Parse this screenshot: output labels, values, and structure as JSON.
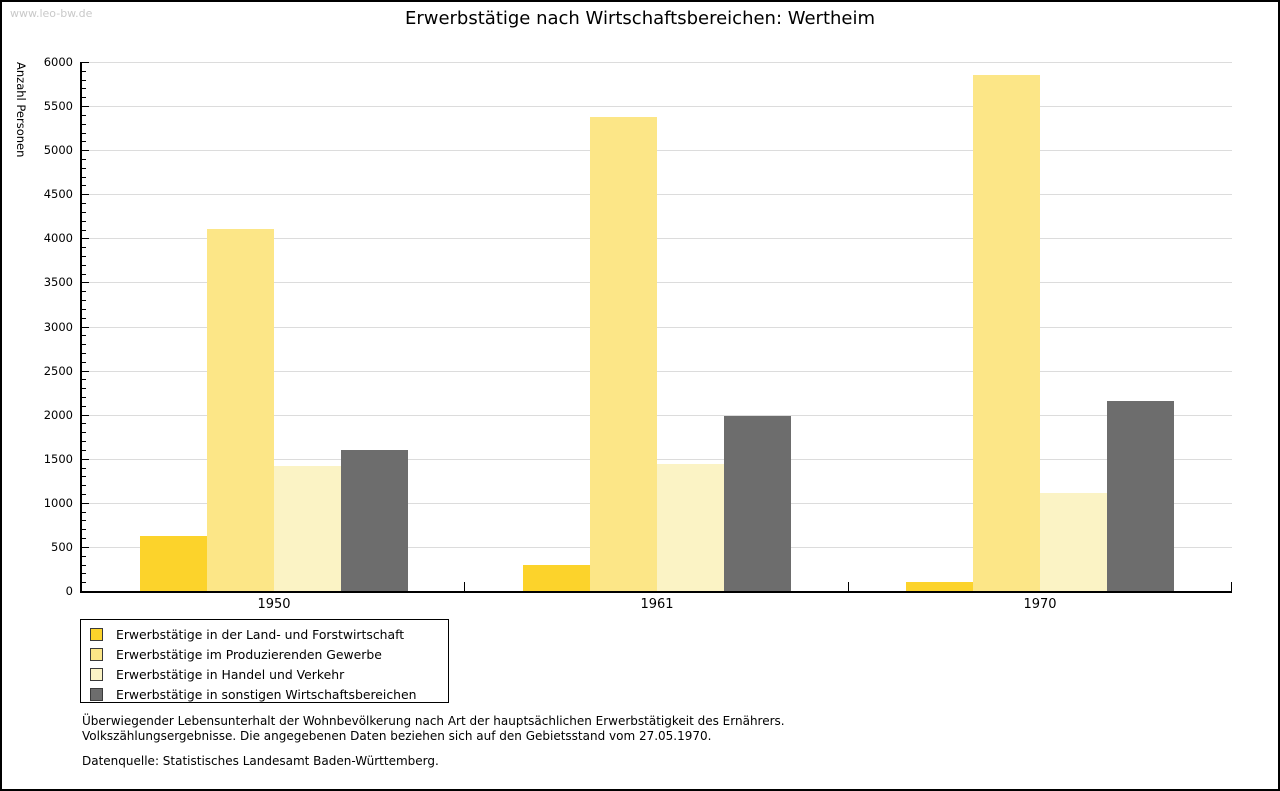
{
  "watermark": "www.leo-bw.de",
  "title": "Erwerbstätige nach Wirtschaftsbereichen: Wertheim",
  "footer": {
    "line1": "Überwiegender Lebensunterhalt der Wohnbevölkerung nach Art der hauptsächlichen Erwerbstätigkeit des Ernährers.",
    "line2": "Volkszählungsergebnisse. Die angegebenen Daten beziehen sich auf den Gebietsstand vom 27.05.1970.",
    "source": "Datenquelle: Statistisches Landesamt Baden-Württemberg."
  },
  "colors": {
    "grid": "#DCDCDC",
    "axis": "#000000",
    "watermark": "#C9C9C9",
    "legend_border": "#000000"
  },
  "chart_data": {
    "type": "bar",
    "title": "Erwerbstätige nach Wirtschaftsbereichen: Wertheim",
    "xlabel": "",
    "ylabel": "Anzahl Personen",
    "categories": [
      "1950",
      "1961",
      "1970"
    ],
    "series": [
      {
        "name": "Erwerbstätige in der Land- und Forstwirtschaft",
        "color": "#FCD32B",
        "values": [
          620,
          300,
          100
        ]
      },
      {
        "name": "Erwerbstätige im Produzierenden Gewerbe",
        "color": "#FCE687",
        "values": [
          4110,
          5380,
          5850
        ]
      },
      {
        "name": "Erwerbstätige in Handel und Verkehr",
        "color": "#FBF3C5",
        "values": [
          1420,
          1440,
          1110
        ]
      },
      {
        "name": "Erwerbstätige in sonstigen Wirtschaftsbereichen",
        "color": "#6D6D6D",
        "values": [
          1600,
          1990,
          2160
        ]
      }
    ],
    "ylim": [
      0,
      6000
    ],
    "ytick_step": 500,
    "yminor_step": 100,
    "grid": "horizontal",
    "legend_position": "bottom-left"
  }
}
